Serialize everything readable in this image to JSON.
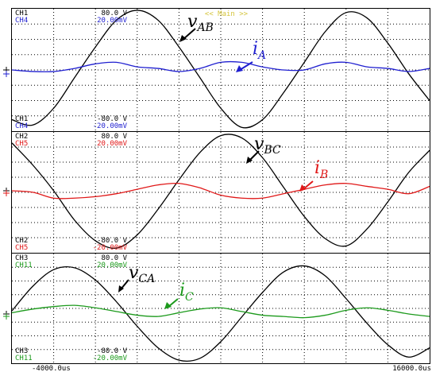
{
  "header": {
    "title": "<< Main >>"
  },
  "panels": [
    {
      "top_a": "CH1",
      "top_b": "CH4",
      "top_range_a": "80.0 V",
      "top_range_b": "20.00mV",
      "bottom_a": "CH1",
      "bottom_b": "CH4",
      "bottom_range_a": "-80.0 V",
      "bottom_range_b": "-20.00mV"
    },
    {
      "top_a": "CH2",
      "top_b": "CH5",
      "top_range_a": "80.0 V",
      "top_range_b": "20.00mV",
      "bottom_a": "CH2",
      "bottom_b": "CH5",
      "bottom_range_a": "-80.0 V",
      "bottom_range_b": "-20.00mV"
    },
    {
      "top_a": "CH3",
      "top_b": "CH11",
      "top_range_a": "80.0 V",
      "top_range_b": "20.00mV",
      "bottom_a": "CH3",
      "bottom_b": "CH11",
      "bottom_range_a": "-80.0 V",
      "bottom_range_b": "-20.00mV"
    }
  ],
  "time_axis": {
    "start_label": "-4000.0us",
    "end_label": "16000.0us"
  },
  "annotations": [
    {
      "main": "v",
      "sub": "AB"
    },
    {
      "main": "i",
      "sub": "A"
    },
    {
      "main": "v",
      "sub": "BC"
    },
    {
      "main": "i",
      "sub": "B"
    },
    {
      "main": "v",
      "sub": "CA"
    },
    {
      "main": "i",
      "sub": "C"
    }
  ],
  "chart_data": {
    "type": "line",
    "x_unit": "us",
    "xlim": [
      -4000,
      16000
    ],
    "panels": [
      {
        "series": [
          {
            "name": "CH1",
            "ylim": [
              -80,
              80
            ],
            "unit": "V",
            "color": "#000000",
            "x": [
              -4000,
              -3000,
              -2000,
              -1000,
              0,
              1000,
              2000,
              3000,
              4000,
              5000,
              6000,
              7000,
              8000,
              9000,
              10000,
              11000,
              12000,
              13000,
              14000,
              15000,
              16000
            ],
            "values": [
              -65,
              -72,
              -50,
              -10,
              30,
              65,
              78,
              65,
              30,
              -10,
              -50,
              -75,
              -65,
              -30,
              10,
              50,
              75,
              68,
              35,
              -5,
              -40
            ]
          },
          {
            "name": "CH4",
            "ylim": [
              -0.02,
              0.02
            ],
            "unit": "V",
            "color": "#1f1fd0",
            "x": [
              -4000,
              -3000,
              -2000,
              -1000,
              0,
              1000,
              2000,
              3000,
              4000,
              5000,
              6000,
              7000,
              8000,
              9000,
              10000,
              11000,
              12000,
              13000,
              14000,
              15000,
              16000
            ],
            "values": [
              0.0,
              -0.0005,
              -0.0005,
              0.0005,
              0.002,
              0.0025,
              0.001,
              0.0005,
              -0.0005,
              0.0005,
              0.0025,
              0.0025,
              0.001,
              0.0,
              0.0,
              0.002,
              0.0025,
              0.001,
              0.0005,
              -0.0005,
              0.0005
            ]
          }
        ]
      },
      {
        "series": [
          {
            "name": "CH2",
            "ylim": [
              -80,
              80
            ],
            "unit": "V",
            "color": "#000000",
            "x": [
              -4000,
              -3000,
              -2000,
              -1000,
              0,
              1000,
              2000,
              3000,
              4000,
              5000,
              6000,
              7000,
              8000,
              9000,
              10000,
              11000,
              12000,
              13000,
              14000,
              15000,
              16000
            ],
            "values": [
              65,
              35,
              0,
              -40,
              -68,
              -78,
              -60,
              -25,
              15,
              52,
              75,
              72,
              45,
              5,
              -35,
              -65,
              -75,
              -52,
              -15,
              25,
              55
            ]
          },
          {
            "name": "CH5",
            "ylim": [
              -0.02,
              0.02
            ],
            "unit": "V",
            "color": "#e01818",
            "x": [
              -4000,
              -3000,
              -2000,
              -1000,
              0,
              1000,
              2000,
              3000,
              4000,
              5000,
              6000,
              7000,
              8000,
              9000,
              10000,
              11000,
              12000,
              13000,
              14000,
              15000,
              16000
            ],
            "values": [
              0.0,
              -0.0005,
              -0.0025,
              -0.0025,
              -0.002,
              -0.001,
              0.0005,
              0.002,
              0.0025,
              0.001,
              -0.0015,
              -0.0025,
              -0.0025,
              -0.001,
              0.0005,
              0.002,
              0.0025,
              0.0015,
              0.0005,
              -0.001,
              0.0015
            ]
          }
        ]
      },
      {
        "series": [
          {
            "name": "CH3",
            "ylim": [
              -80,
              80
            ],
            "unit": "V",
            "color": "#000000",
            "x": [
              -4000,
              -3000,
              -2000,
              -1000,
              0,
              1000,
              2000,
              3000,
              4000,
              5000,
              6000,
              7000,
              8000,
              9000,
              10000,
              11000,
              12000,
              13000,
              14000,
              15000,
              16000
            ],
            "values": [
              5,
              45,
              72,
              75,
              55,
              20,
              -20,
              -55,
              -75,
              -72,
              -45,
              -5,
              35,
              68,
              78,
              62,
              25,
              -15,
              -50,
              -70,
              -55
            ]
          },
          {
            "name": "CH11",
            "ylim": [
              -0.02,
              0.02
            ],
            "unit": "V",
            "color": "#1c9a1c",
            "x": [
              -4000,
              -3000,
              -2000,
              -1000,
              0,
              1000,
              2000,
              3000,
              4000,
              5000,
              6000,
              7000,
              8000,
              9000,
              10000,
              11000,
              12000,
              13000,
              14000,
              15000,
              16000
            ],
            "values": [
              0.0005,
              0.002,
              0.003,
              0.0035,
              0.0025,
              0.001,
              -0.0005,
              -0.001,
              0.0005,
              0.002,
              0.0025,
              0.001,
              -0.0005,
              -0.001,
              -0.0015,
              -0.0005,
              0.0015,
              0.0025,
              0.0015,
              0.0,
              -0.001
            ]
          }
        ]
      }
    ]
  }
}
